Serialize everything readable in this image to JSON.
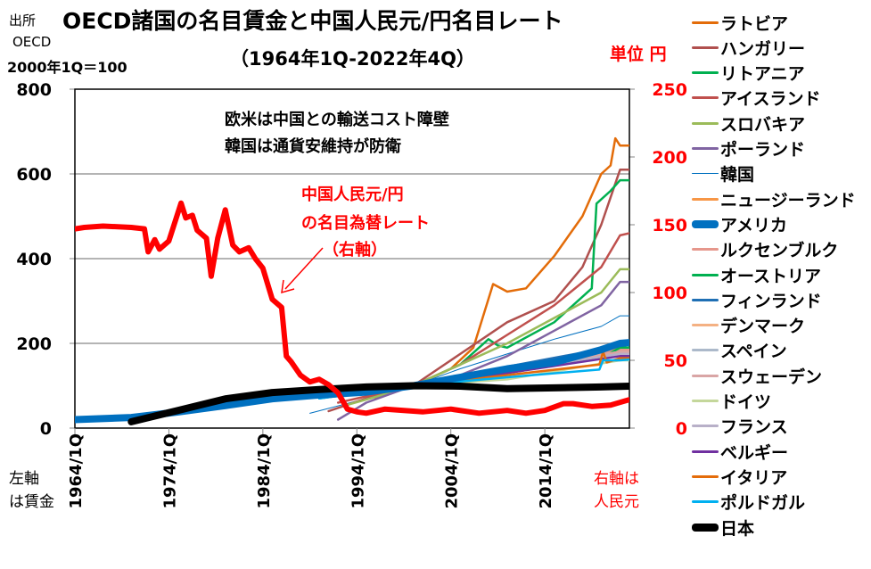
{
  "header": {
    "title": "OECD諸国の名目賃金と中国人民元/円名目レート",
    "subtitle": "（1964年1Q-2022年4Q）",
    "source_label": "出所",
    "source_name": "OECD",
    "base": "2000年1Q＝100",
    "unit": "単位  円"
  },
  "annotations": {
    "note1": "欧米は中国との輸送コスト障壁",
    "note2": "韓国は通貨安維持が防衛",
    "yuan_label1": "中国人民元/円",
    "yuan_label2": "の名目為替レート",
    "yuan_label3": "（右軸）",
    "left_axis1": "左軸",
    "left_axis2": "は賃金",
    "right_axis1": "右軸は",
    "right_axis2": "人民元"
  },
  "chart_data": {
    "type": "line",
    "title": "OECD諸国の名目賃金と中国人民元/円名目レート",
    "x_range": [
      1964,
      2023
    ],
    "x_ticks": [
      "1964/1Q",
      "1974/1Q",
      "1984/1Q",
      "1994/1Q",
      "2004/1Q",
      "2014/1Q"
    ],
    "x_tick_years": [
      1964,
      1974,
      1984,
      1994,
      2004,
      2014
    ],
    "y_left": {
      "range": [
        0,
        800
      ],
      "ticks": [
        "0",
        "200",
        "400",
        "600",
        "800"
      ],
      "tick_values": [
        0,
        200,
        400,
        600,
        800
      ]
    },
    "y_right": {
      "range": [
        0,
        250
      ],
      "ticks": [
        "0",
        "50",
        "100",
        "150",
        "200",
        "250"
      ],
      "tick_values": [
        0,
        50,
        100,
        150,
        200,
        250
      ],
      "color": "#ff0000"
    },
    "grid": true,
    "legend_position": "right",
    "series": [
      {
        "name": "ラトビア",
        "color": "#e36c09",
        "axis": "left",
        "points": [
          [
            1996,
            70
          ],
          [
            2000,
            100
          ],
          [
            2004,
            140
          ],
          [
            2006.4,
            190
          ],
          [
            2008.5,
            340
          ],
          [
            2010,
            322
          ],
          [
            2012,
            330
          ],
          [
            2015,
            406
          ],
          [
            2018,
            500
          ],
          [
            2020,
            600
          ],
          [
            2021,
            620
          ],
          [
            2021.5,
            684
          ],
          [
            2022,
            667
          ],
          [
            2023,
            667
          ]
        ]
      },
      {
        "name": "ハンガリー",
        "color": "#b0504e",
        "axis": "left",
        "points": [
          [
            1991,
            40
          ],
          [
            1995,
            70
          ],
          [
            2000,
            100
          ],
          [
            2005,
            175
          ],
          [
            2010,
            250
          ],
          [
            2015,
            300
          ],
          [
            2018,
            380
          ],
          [
            2020,
            480
          ],
          [
            2022,
            610
          ],
          [
            2023,
            610
          ]
        ]
      },
      {
        "name": "リトアニア",
        "color": "#00b050",
        "axis": "left",
        "points": [
          [
            1997,
            80
          ],
          [
            2000,
            100
          ],
          [
            2005,
            150
          ],
          [
            2008,
            210
          ],
          [
            2009,
            195
          ],
          [
            2010,
            190
          ],
          [
            2015,
            250
          ],
          [
            2019,
            330
          ],
          [
            2019.5,
            530
          ],
          [
            2021,
            560
          ],
          [
            2022,
            585
          ],
          [
            2023,
            585
          ]
        ]
      },
      {
        "name": "アイスランド",
        "color": "#c0504d",
        "axis": "left",
        "points": [
          [
            1992,
            60
          ],
          [
            1996,
            80
          ],
          [
            2000,
            100
          ],
          [
            2005,
            150
          ],
          [
            2010,
            220
          ],
          [
            2015,
            290
          ],
          [
            2020,
            380
          ],
          [
            2022,
            455
          ],
          [
            2023,
            460
          ]
        ]
      },
      {
        "name": "スロバキア",
        "color": "#9bbb59",
        "axis": "left",
        "points": [
          [
            1993,
            55
          ],
          [
            1997,
            80
          ],
          [
            2000,
            100
          ],
          [
            2005,
            150
          ],
          [
            2010,
            200
          ],
          [
            2015,
            260
          ],
          [
            2020,
            320
          ],
          [
            2022,
            375
          ],
          [
            2023,
            375
          ]
        ]
      },
      {
        "name": "ポーランド",
        "color": "#8064a2",
        "axis": "left",
        "points": [
          [
            1992,
            20
          ],
          [
            1995,
            60
          ],
          [
            2000,
            100
          ],
          [
            2005,
            125
          ],
          [
            2010,
            170
          ],
          [
            2015,
            230
          ],
          [
            2020,
            290
          ],
          [
            2022,
            345
          ],
          [
            2023,
            345
          ]
        ]
      },
      {
        "name": "韓国",
        "color": "#0070c0",
        "axis": "left",
        "width": 1,
        "points": [
          [
            1989,
            35
          ],
          [
            1995,
            70
          ],
          [
            2000,
            100
          ],
          [
            2005,
            140
          ],
          [
            2010,
            175
          ],
          [
            2015,
            210
          ],
          [
            2020,
            240
          ],
          [
            2022,
            265
          ],
          [
            2023,
            265
          ]
        ]
      },
      {
        "name": "ニュージーランド",
        "color": "#f79646",
        "axis": "left",
        "points": [
          [
            1990,
            80
          ],
          [
            2000,
            100
          ],
          [
            2010,
            140
          ],
          [
            2022,
            190
          ],
          [
            2023,
            190
          ]
        ]
      },
      {
        "name": "アメリカ",
        "color": "#0070c0",
        "axis": "left",
        "width": 8,
        "points": [
          [
            1964,
            20
          ],
          [
            1970,
            25
          ],
          [
            1975,
            38
          ],
          [
            1980,
            53
          ],
          [
            1985,
            69
          ],
          [
            1990,
            78
          ],
          [
            1995,
            85
          ],
          [
            2000,
            100
          ],
          [
            2005,
            120
          ],
          [
            2010,
            140
          ],
          [
            2015,
            155
          ],
          [
            2020,
            185
          ],
          [
            2022,
            200
          ],
          [
            2023,
            202
          ]
        ]
      },
      {
        "name": "ルクセンブルク",
        "color": "#e6978c",
        "axis": "left",
        "points": [
          [
            1990,
            75
          ],
          [
            2000,
            100
          ],
          [
            2010,
            140
          ],
          [
            2022,
            185
          ],
          [
            2023,
            185
          ]
        ]
      },
      {
        "name": "オーストリア",
        "color": "#00b050",
        "axis": "left",
        "points": [
          [
            1990,
            75
          ],
          [
            2000,
            100
          ],
          [
            2010,
            130
          ],
          [
            2020,
            165
          ],
          [
            2022,
            190
          ],
          [
            2023,
            190
          ]
        ]
      },
      {
        "name": "フィンランド",
        "color": "#1f6fb4",
        "axis": "left",
        "points": [
          [
            1990,
            70
          ],
          [
            2000,
            100
          ],
          [
            2010,
            145
          ],
          [
            2022,
            195
          ],
          [
            2023,
            197
          ]
        ]
      },
      {
        "name": "デンマーク",
        "color": "#f4b183",
        "axis": "left",
        "points": [
          [
            1990,
            75
          ],
          [
            2000,
            100
          ],
          [
            2010,
            140
          ],
          [
            2022,
            180
          ],
          [
            2023,
            180
          ]
        ]
      },
      {
        "name": "スペイン",
        "color": "#acb9ca",
        "axis": "left",
        "points": [
          [
            1990,
            80
          ],
          [
            2000,
            100
          ],
          [
            2010,
            140
          ],
          [
            2022,
            175
          ],
          [
            2023,
            175
          ]
        ]
      },
      {
        "name": "スウェーデン",
        "color": "#d9a5a5",
        "axis": "left",
        "points": [
          [
            1990,
            75
          ],
          [
            2000,
            100
          ],
          [
            2010,
            140
          ],
          [
            2022,
            180
          ],
          [
            2023,
            180
          ]
        ]
      },
      {
        "name": "ドイツ",
        "color": "#c4d79b",
        "axis": "left",
        "points": [
          [
            1990,
            90
          ],
          [
            2000,
            100
          ],
          [
            2010,
            115
          ],
          [
            2022,
            160
          ],
          [
            2023,
            160
          ]
        ]
      },
      {
        "name": "フランス",
        "color": "#b8b0c8",
        "axis": "left",
        "points": [
          [
            1990,
            80
          ],
          [
            2000,
            100
          ],
          [
            2010,
            135
          ],
          [
            2022,
            175
          ],
          [
            2023,
            175
          ]
        ]
      },
      {
        "name": "ベルギー",
        "color": "#7030a0",
        "axis": "left",
        "points": [
          [
            1990,
            80
          ],
          [
            2000,
            100
          ],
          [
            2010,
            130
          ],
          [
            2022,
            170
          ],
          [
            2023,
            170
          ]
        ]
      },
      {
        "name": "イタリア",
        "color": "#e46c0a",
        "axis": "left",
        "points": [
          [
            1990,
            80
          ],
          [
            2000,
            100
          ],
          [
            2010,
            125
          ],
          [
            2019.8,
            150
          ],
          [
            2020.2,
            180
          ],
          [
            2020.6,
            155
          ],
          [
            2022,
            165
          ],
          [
            2023,
            165
          ]
        ]
      },
      {
        "name": "ポルドガル",
        "color": "#00b0f0",
        "axis": "left",
        "points": [
          [
            1990,
            70
          ],
          [
            2000,
            100
          ],
          [
            2010,
            120
          ],
          [
            2019.8,
            138
          ],
          [
            2020.2,
            160
          ],
          [
            2022,
            160
          ],
          [
            2023,
            162
          ]
        ]
      },
      {
        "name": "日本",
        "color": "#000000",
        "axis": "left",
        "width": 8,
        "points": [
          [
            1970,
            15
          ],
          [
            1975,
            42
          ],
          [
            1980,
            69
          ],
          [
            1985,
            84
          ],
          [
            1990,
            91
          ],
          [
            1995,
            97
          ],
          [
            2000,
            100
          ],
          [
            2005,
            99
          ],
          [
            2010,
            93
          ],
          [
            2015,
            95
          ],
          [
            2020,
            97
          ],
          [
            2023,
            99
          ]
        ]
      }
    ],
    "yuan_series": {
      "color": "#ff0000",
      "axis": "right",
      "width": 6,
      "points": [
        [
          1964,
          147
        ],
        [
          1965,
          148
        ],
        [
          1967,
          149
        ],
        [
          1970,
          148
        ],
        [
          1971.4,
          147
        ],
        [
          1971.8,
          130
        ],
        [
          1972.5,
          139
        ],
        [
          1973,
          132
        ],
        [
          1974,
          138
        ],
        [
          1975.3,
          166
        ],
        [
          1975.8,
          155
        ],
        [
          1976.5,
          157
        ],
        [
          1977,
          146
        ],
        [
          1978,
          140
        ],
        [
          1978.5,
          112
        ],
        [
          1979.2,
          140
        ],
        [
          1980,
          161
        ],
        [
          1980.8,
          135
        ],
        [
          1981.5,
          130
        ],
        [
          1982.5,
          133
        ],
        [
          1983.2,
          125
        ],
        [
          1984,
          118
        ],
        [
          1985,
          95
        ],
        [
          1986,
          89
        ],
        [
          1986.5,
          53
        ],
        [
          1987,
          49
        ],
        [
          1988,
          39
        ],
        [
          1989,
          34
        ],
        [
          1990,
          36
        ],
        [
          1991,
          32
        ],
        [
          1992,
          26
        ],
        [
          1993,
          14
        ],
        [
          1994,
          12
        ],
        [
          1995,
          11
        ],
        [
          1997,
          14
        ],
        [
          1999,
          13
        ],
        [
          2001,
          12
        ],
        [
          2004,
          14
        ],
        [
          2007,
          11
        ],
        [
          2010,
          13
        ],
        [
          2012,
          11
        ],
        [
          2014,
          13
        ],
        [
          2016,
          18
        ],
        [
          2017,
          18
        ],
        [
          2019,
          16
        ],
        [
          2021,
          17
        ],
        [
          2022.5,
          20
        ],
        [
          2023,
          21
        ]
      ]
    }
  }
}
